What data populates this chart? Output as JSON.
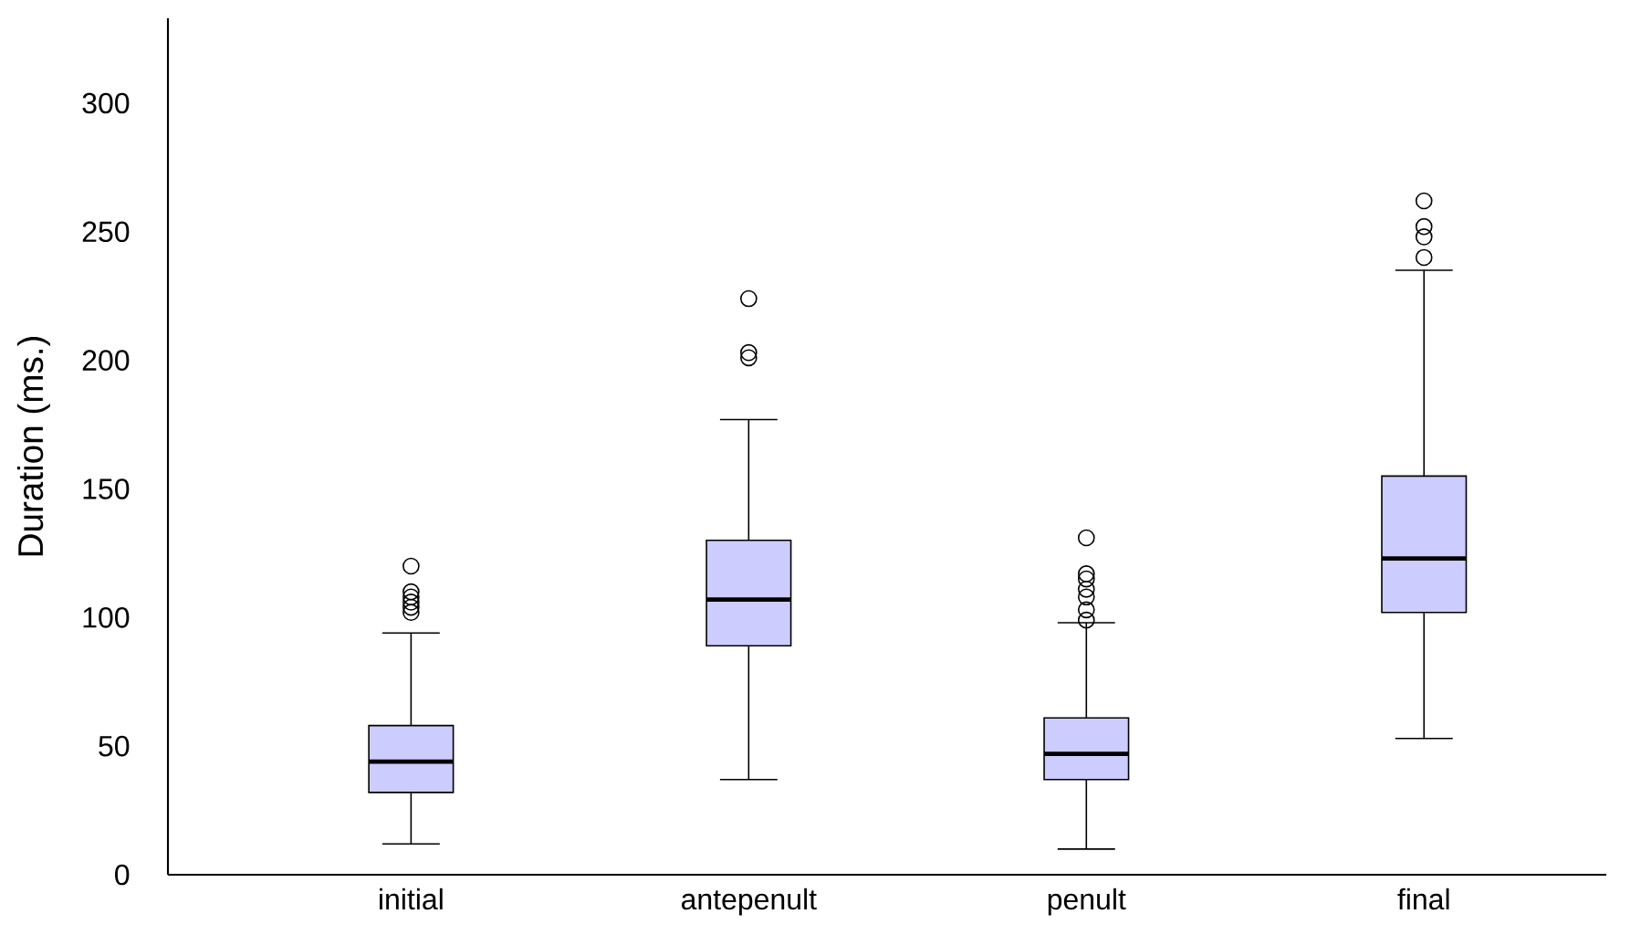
{
  "chart_data": {
    "type": "box",
    "ylabel": "Duration (ms.)",
    "categories": [
      "initial",
      "antepenult",
      "penult",
      "final"
    ],
    "series": [
      {
        "color": "#ccccff",
        "boxes": [
          {
            "low": 12,
            "q1": 32,
            "median": 44,
            "q3": 58,
            "high": 94,
            "outliers": [
              102,
              104,
              106,
              108,
              110,
              120
            ]
          },
          {
            "low": 37,
            "q1": 89,
            "median": 107,
            "q3": 130,
            "high": 177,
            "outliers": [
              201,
              203,
              224
            ]
          },
          {
            "low": 10,
            "q1": 37,
            "median": 47,
            "q3": 61,
            "high": 98,
            "outliers": [
              99,
              103,
              108,
              111,
              115,
              117,
              131
            ]
          },
          {
            "low": 53,
            "q1": 102,
            "median": 123,
            "q3": 155,
            "high": 235,
            "outliers": [
              240,
              248,
              252,
              262
            ]
          }
        ]
      }
    ],
    "ylim": [
      0,
      333
    ],
    "yticks": [
      0,
      50,
      100,
      150,
      200,
      250,
      300
    ]
  }
}
